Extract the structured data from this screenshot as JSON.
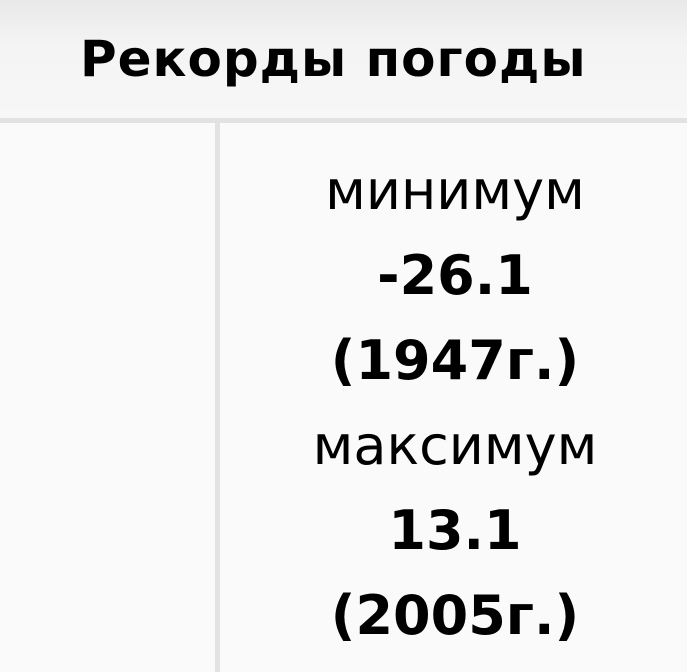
{
  "header": {
    "title": "Рекорды погоды"
  },
  "records": {
    "min_label": "минимум",
    "min_value": "-26.1",
    "min_year": "(1947г.)",
    "max_label": "максимум",
    "max_value": "13.1",
    "max_year": "(2005г.)"
  }
}
